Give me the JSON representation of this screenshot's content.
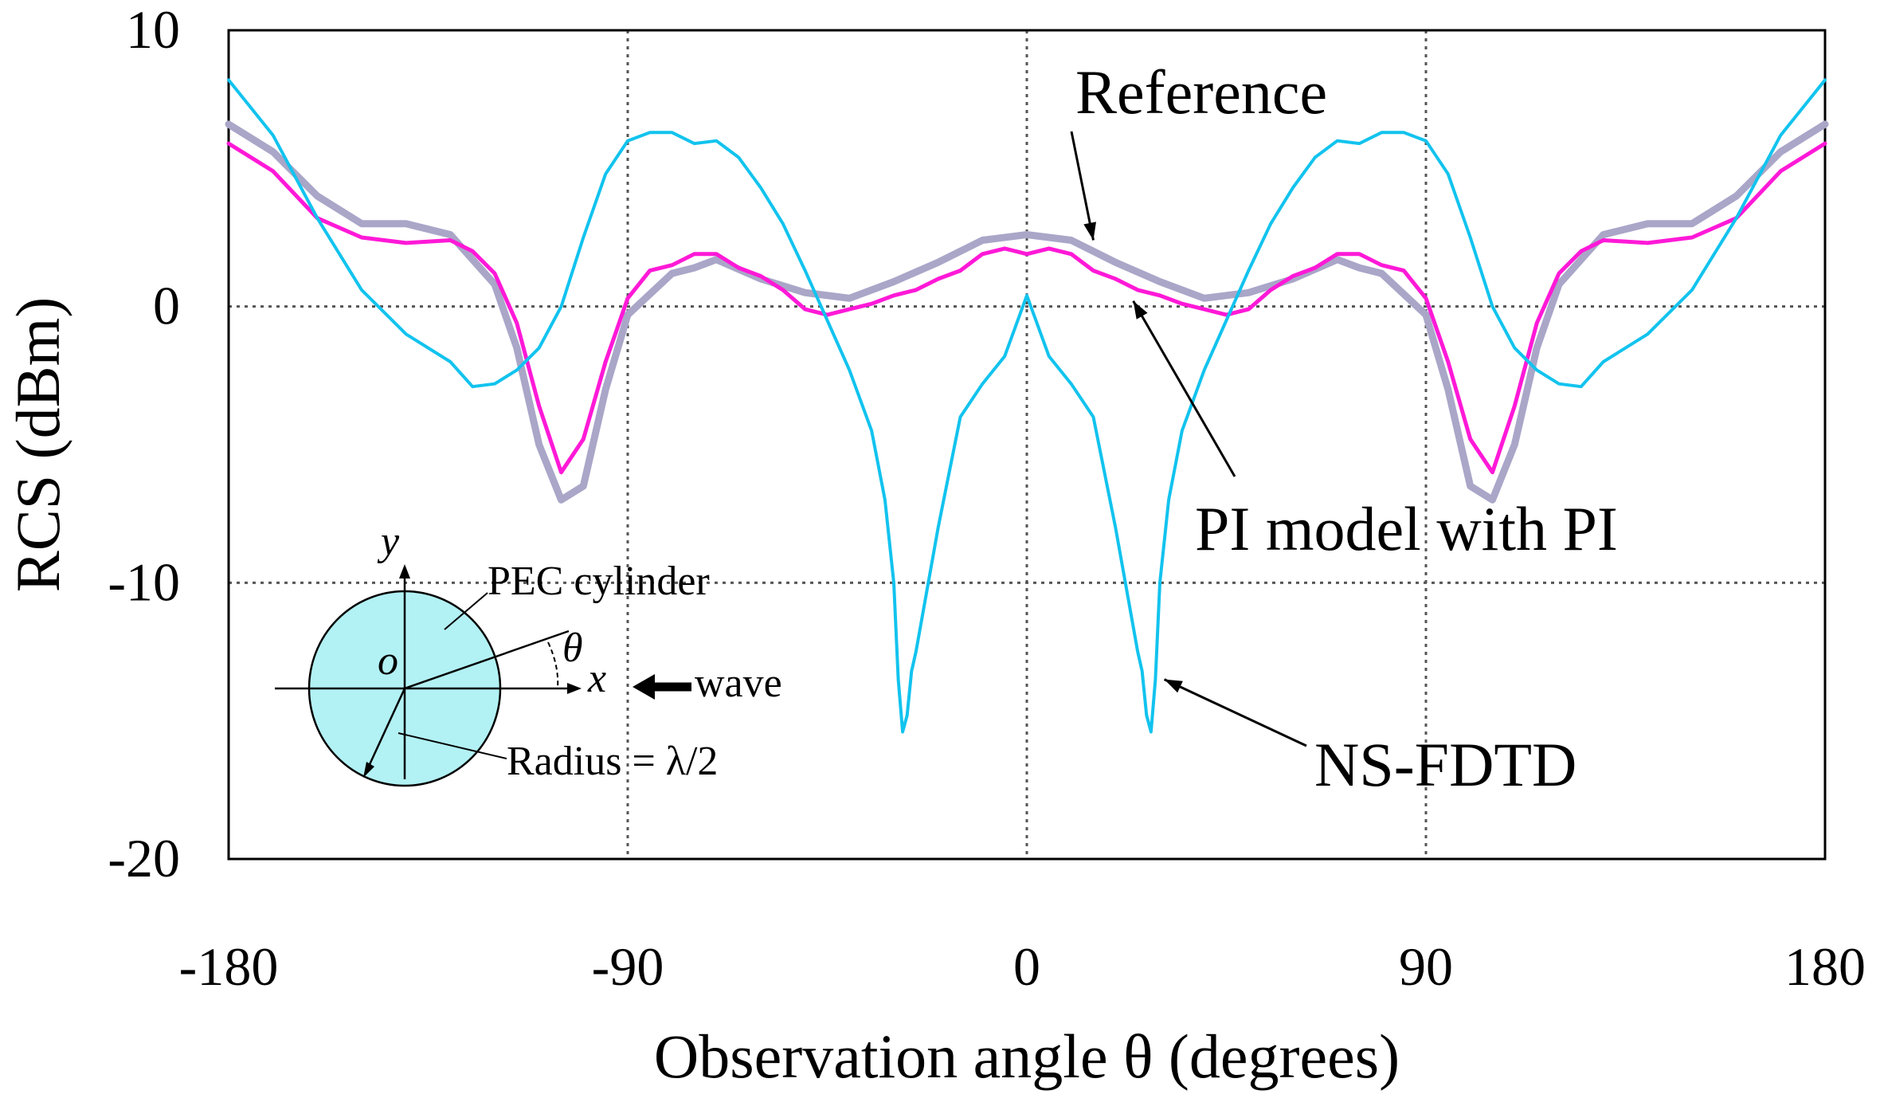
{
  "chart_data": {
    "type": "line",
    "title": "",
    "xlabel": "Observation angle θ (degrees)",
    "ylabel": "RCS (dBm)",
    "xlim": [
      -180,
      180
    ],
    "ylim": [
      -20,
      10
    ],
    "xticks": [
      -180,
      -90,
      0,
      90,
      180
    ],
    "yticks": [
      10,
      0,
      -10,
      -20
    ],
    "xtick_labels": [
      "-180",
      "-90",
      "0",
      "90",
      "180"
    ],
    "ytick_labels": [
      "10",
      "0",
      "-10",
      "-20"
    ],
    "grid": "dotted",
    "series": [
      {
        "name": "Reference",
        "color": "#a9a6c8",
        "x": [
          0,
          10,
          20,
          30,
          40,
          50,
          60,
          70,
          75,
          80,
          90,
          95,
          100,
          105,
          110,
          115,
          120,
          130,
          140,
          150,
          160,
          170,
          180
        ],
        "y": [
          2.6,
          2.4,
          1.6,
          0.9,
          0.3,
          0.5,
          1.0,
          1.7,
          1.4,
          1.2,
          -0.3,
          -3.0,
          -6.5,
          -7.0,
          -5.0,
          -1.5,
          0.8,
          2.6,
          3.0,
          3.0,
          4.0,
          5.6,
          6.6
        ]
      },
      {
        "name": "PI model with PI",
        "color": "#ff19d7",
        "x": [
          0,
          5,
          10,
          15,
          20,
          25,
          30,
          35,
          40,
          45,
          50,
          55,
          60,
          65,
          70,
          75,
          80,
          85,
          90,
          95,
          100,
          105,
          110,
          115,
          120,
          125,
          130,
          140,
          150,
          160,
          170,
          180
        ],
        "y": [
          1.9,
          2.1,
          1.9,
          1.3,
          1.0,
          0.6,
          0.4,
          0.1,
          -0.1,
          -0.3,
          -0.1,
          0.6,
          1.1,
          1.4,
          1.9,
          1.9,
          1.5,
          1.3,
          0.3,
          -2.0,
          -4.8,
          -6.0,
          -3.6,
          -0.6,
          1.2,
          2.0,
          2.4,
          2.3,
          2.5,
          3.2,
          4.9,
          5.9
        ]
      },
      {
        "name": "NS-FDTD",
        "color": "#12c3ee",
        "x": [
          0,
          5,
          10,
          15,
          20,
          25,
          26,
          27,
          28,
          29,
          30,
          32,
          35,
          40,
          45,
          50,
          55,
          60,
          65,
          70,
          75,
          80,
          85,
          90,
          95,
          100,
          105,
          110,
          115,
          120,
          125,
          130,
          140,
          150,
          160,
          170,
          180
        ],
        "y": [
          0.4,
          -1.8,
          -2.8,
          -4.0,
          -8.0,
          -12.5,
          -13.2,
          -14.8,
          -15.4,
          -13.5,
          -10.0,
          -7.0,
          -4.5,
          -2.3,
          -0.5,
          1.3,
          3.0,
          4.3,
          5.4,
          6.0,
          5.9,
          6.3,
          6.3,
          6.0,
          4.8,
          2.5,
          0.0,
          -1.5,
          -2.3,
          -2.8,
          -2.9,
          -2.0,
          -1.0,
          0.6,
          3.2,
          6.2,
          8.2
        ]
      }
    ],
    "annotations": [
      {
        "text": "Reference",
        "target_series": "Reference",
        "target_x": 15,
        "target_y": 2.4
      },
      {
        "text": "PI model with PI",
        "target_series": "PI model with PI",
        "target_x": 24,
        "target_y": 0.2
      },
      {
        "text": "NS-FDTD",
        "target_series": "NS-FDTD",
        "target_x": 31,
        "target_y": -13.5
      }
    ],
    "inset": {
      "label_y": "y",
      "label_origin": "o",
      "label_theta": "θ",
      "label_x": "x",
      "label_cylinder": "PEC cylinder",
      "label_wave": "wave",
      "label_radius": "Radius = λ/2",
      "fill_color": "#b2f1f4"
    }
  }
}
